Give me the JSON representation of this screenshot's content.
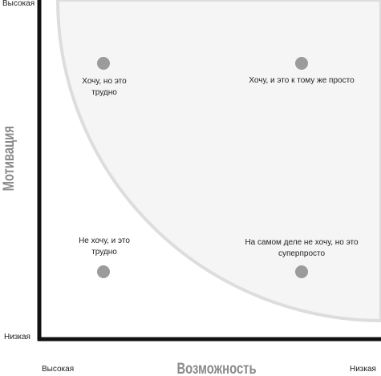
{
  "axes": {
    "y_title": "Мотивация",
    "y_high": "Высокая",
    "y_low": "Низкая",
    "x_title": "Возможность",
    "x_high": "Высокая",
    "x_low": "Низкая"
  },
  "quadrants": [
    {
      "lines": [
        "Хочу, но это",
        "трудно"
      ]
    },
    {
      "lines": [
        "Хочу, и это к тому же просто"
      ]
    },
    {
      "lines": [
        "Не хочу, и это",
        "трудно"
      ]
    },
    {
      "lines": [
        "На самом деле не хочу, но это",
        "суперпросто"
      ]
    }
  ],
  "colors": {
    "axis": "#111111",
    "region_fill": "#f5f5f5",
    "region_stroke": "#dddddd",
    "marker": "#9b9b9b",
    "axis_title": "#8a8a8a"
  }
}
